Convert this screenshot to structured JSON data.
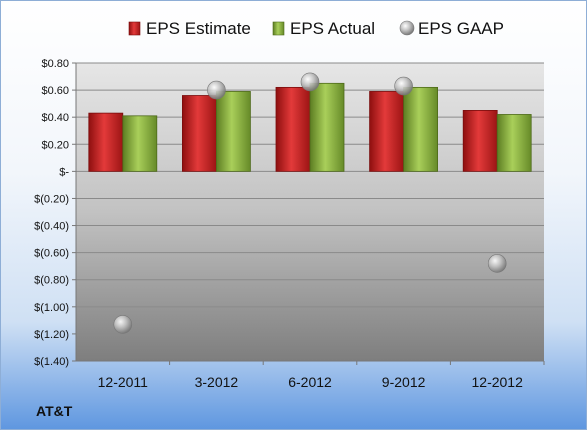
{
  "company": "AT&T",
  "chart_data": {
    "type": "bar",
    "categories": [
      "12-2011",
      "3-2012",
      "6-2012",
      "9-2012",
      "12-2012"
    ],
    "series": [
      {
        "name": "EPS Estimate",
        "kind": "bar",
        "color": "#cc1f1f",
        "values": [
          0.43,
          0.56,
          0.62,
          0.59,
          0.45
        ]
      },
      {
        "name": "EPS Actual",
        "kind": "bar",
        "color": "#8ab33a",
        "values": [
          0.41,
          0.59,
          0.65,
          0.62,
          0.42
        ]
      },
      {
        "name": "EPS GAAP",
        "kind": "marker",
        "color": "#a9a9a9",
        "values": [
          -1.13,
          0.6,
          0.66,
          0.63,
          -0.68
        ]
      }
    ],
    "yticks": [
      0.8,
      0.6,
      0.4,
      0.2,
      0,
      -0.2,
      -0.4,
      -0.6,
      -0.8,
      -1.0,
      -1.2,
      -1.4
    ],
    "ytick_labels": [
      "$0.80",
      "$0.60",
      "$0.40",
      "$0.20",
      "$-",
      "$(0.20)",
      "$(0.40)",
      "$(0.60)",
      "$(0.80)",
      "$(1.00)",
      "$(1.20)",
      "$(1.40)"
    ],
    "ylim": [
      -1.4,
      0.8
    ],
    "grid": true,
    "legend": "top"
  }
}
